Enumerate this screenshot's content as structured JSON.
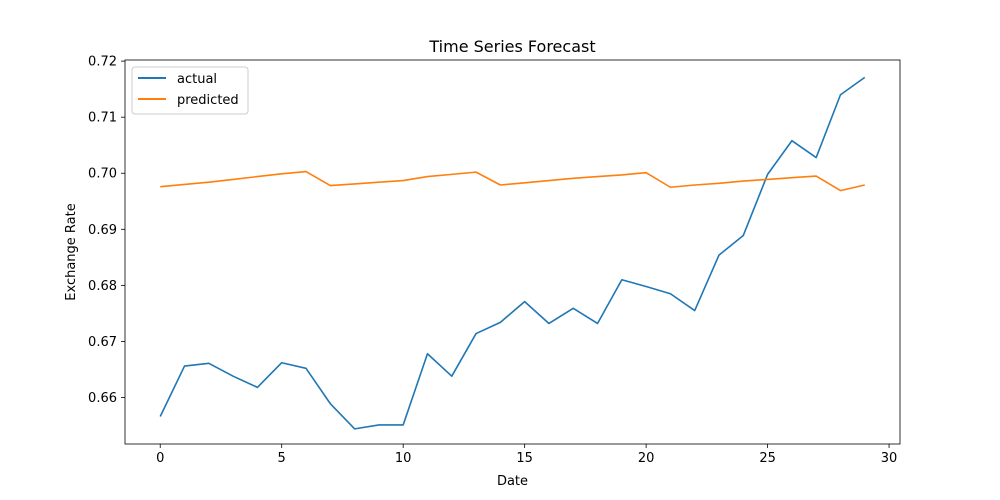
{
  "chart_data": {
    "type": "line",
    "title": "Time Series Forecast",
    "xlabel": "Date",
    "ylabel": "Exchange Rate",
    "xlim": [
      -1.45,
      30.45
    ],
    "ylim": [
      0.6517,
      0.7202
    ],
    "xticks": [
      0,
      5,
      10,
      15,
      20,
      25,
      30
    ],
    "yticks": [
      0.66,
      0.67,
      0.68,
      0.69,
      0.7,
      0.71,
      0.72
    ],
    "ytick_labels": [
      "0.66",
      "0.67",
      "0.68",
      "0.69",
      "0.70",
      "0.71",
      "0.72"
    ],
    "grid": false,
    "legend": "top-left",
    "x": [
      0,
      1,
      2,
      3,
      4,
      5,
      6,
      7,
      8,
      9,
      10,
      11,
      12,
      13,
      14,
      15,
      16,
      17,
      18,
      19,
      20,
      21,
      22,
      23,
      24,
      25,
      26,
      27,
      28,
      29
    ],
    "series": [
      {
        "name": "actual",
        "color": "#1f77b4",
        "values": [
          0.6566,
          0.6656,
          0.6661,
          0.6638,
          0.6618,
          0.6662,
          0.6652,
          0.6589,
          0.6544,
          0.6551,
          0.6551,
          0.6678,
          0.6638,
          0.6714,
          0.6734,
          0.6771,
          0.6732,
          0.6759,
          0.6732,
          0.681,
          0.6798,
          0.6785,
          0.6755,
          0.6854,
          0.6889,
          0.6998,
          0.7058,
          0.7028,
          0.714,
          0.7171
        ]
      },
      {
        "name": "predicted",
        "color": "#ff7f0e",
        "values": [
          0.6976,
          0.698,
          0.6984,
          0.6989,
          0.6994,
          0.6999,
          0.7003,
          0.6978,
          0.6981,
          0.6984,
          0.6987,
          0.6994,
          0.6998,
          0.7002,
          0.6979,
          0.6983,
          0.6987,
          0.6991,
          0.6994,
          0.6997,
          0.7001,
          0.6975,
          0.6979,
          0.6982,
          0.6986,
          0.6989,
          0.6992,
          0.6995,
          0.6969,
          0.6979
        ]
      }
    ]
  }
}
